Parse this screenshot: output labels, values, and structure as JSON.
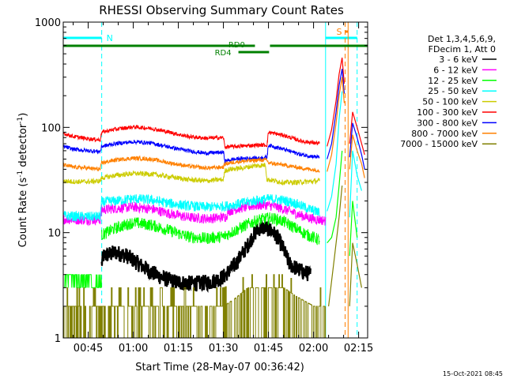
{
  "chart_data": {
    "type": "line",
    "title": "RHESSI Observing Summary Count Rates",
    "xlabel": "Start Time (28-May-07 00:36:42)",
    "ylabel": "Count Rate (s",
    "ylabel_sup": "-1",
    "ylabel_mid": " detector",
    "ylabel_close": ")",
    "yscale": "log",
    "ylim": [
      1,
      1000
    ],
    "xlim_minutes": [
      36.7,
      138
    ],
    "x_ticks": [
      {
        "label": "00:45",
        "minutes": 45
      },
      {
        "label": "01:00",
        "minutes": 60
      },
      {
        "label": "01:15",
        "minutes": 75
      },
      {
        "label": "01:30",
        "minutes": 90
      },
      {
        "label": "01:45",
        "minutes": 105
      },
      {
        "label": "02:00",
        "minutes": 120
      },
      {
        "label": "02:15",
        "minutes": 135
      }
    ],
    "y_ticks": [
      {
        "label": "1",
        "value": 1
      },
      {
        "label": "10",
        "value": 10
      },
      {
        "label": "100",
        "value": 100
      },
      {
        "label": "1000",
        "value": 1000
      }
    ],
    "legend": {
      "placement": "right",
      "header": [
        "Det 1,3,4,5,6,9,",
        "FDecim 1, Att 0"
      ],
      "entries": [
        {
          "label": "3 - 6 keV",
          "color": "#000000"
        },
        {
          "label": "6 - 12 keV",
          "color": "#ff00ff"
        },
        {
          "label": "12 - 25 keV",
          "color": "#00ff00"
        },
        {
          "label": "25 - 50 keV",
          "color": "#00ffff"
        },
        {
          "label": "50 - 100 keV",
          "color": "#cccc00"
        },
        {
          "label": "100 - 300 keV",
          "color": "#ff0000"
        },
        {
          "label": "300 - 800 keV",
          "color": "#0000ff"
        },
        {
          "label": "800 - 7000 keV",
          "color": "#ff8000"
        },
        {
          "label": "7000 - 15000 keV",
          "color": "#808000"
        }
      ]
    },
    "annotations": {
      "night": "N",
      "saa": "S",
      "rd0": "RD0",
      "rd4": "RD4",
      "timestamp": "15-Oct-2021 08:45"
    },
    "night_intervals": [
      [
        36.7,
        49.5
      ],
      [
        124,
        134.5
      ]
    ],
    "saa_intervals": [
      [
        130.5,
        131.5
      ]
    ],
    "rd0_intervals": [
      [
        36.7,
        100.5
      ],
      [
        105.5,
        138
      ]
    ],
    "rd4_intervals": [
      [
        95,
        105.2
      ]
    ],
    "series": [
      {
        "name": "3 - 6 keV",
        "color": "#000000",
        "noise": 0.08,
        "x": [
          49.5,
          50,
          54,
          58,
          62,
          66,
          70,
          74,
          78,
          82,
          86,
          90,
          94,
          98,
          100,
          102,
          104,
          106,
          108,
          110,
          112,
          116,
          119
        ],
        "y": [
          5,
          6,
          6.5,
          6,
          5,
          4.2,
          3.7,
          3.4,
          3.3,
          3.3,
          3.4,
          3.8,
          5,
          7.5,
          9.5,
          11,
          11.2,
          10.5,
          9,
          7,
          5,
          4.3,
          4
        ]
      },
      {
        "name": "6 - 12 keV",
        "color": "#ff00ff",
        "noise": 0.05,
        "x": [
          36.7,
          40,
          45,
          49,
          49.5,
          54,
          60,
          66,
          72,
          78,
          84,
          88,
          91,
          91.5,
          96,
          100,
          104,
          108,
          112,
          116,
          120,
          124
        ],
        "y": [
          13.5,
          13.3,
          13.2,
          13.3,
          16.5,
          17,
          17.5,
          16.8,
          15.2,
          14,
          13.6,
          13.8,
          14.2,
          16,
          17.2,
          18,
          18.4,
          17.5,
          16,
          14.5,
          13.5,
          13
        ]
      },
      {
        "name": "12 - 25 keV",
        "color": "#00ff00",
        "noise": 0.06,
        "x": [
          49.5,
          54,
          60,
          66,
          72,
          78,
          84,
          90,
          94,
          98,
          102,
          106,
          110,
          114,
          118,
          122
        ],
        "y": [
          9.5,
          11,
          12.5,
          11.8,
          10.5,
          9.2,
          8.8,
          9.2,
          10.5,
          12,
          13.3,
          13.8,
          12.8,
          11,
          9.5,
          8.5
        ]
      },
      {
        "name": "25 - 50 keV",
        "color": "#00ffff",
        "noise": 0.05,
        "x": [
          36.7,
          40,
          45,
          49,
          49.5,
          54,
          60,
          66,
          72,
          78,
          84,
          90,
          94,
          98,
          102,
          106,
          110,
          114,
          118,
          122
        ],
        "y": [
          14.5,
          14.3,
          14.2,
          14.2,
          19.5,
          20,
          21,
          20.5,
          19,
          18,
          17.5,
          17.8,
          18.5,
          19.5,
          20.5,
          21,
          20.3,
          19,
          17,
          15.5
        ]
      },
      {
        "name": "50 - 100 keV",
        "color": "#cccc00",
        "noise": 0.025,
        "x": [
          36.7,
          40,
          45,
          49,
          49.5,
          54,
          60,
          66,
          72,
          78,
          84,
          90,
          90.5,
          92,
          96,
          100,
          104,
          104.5,
          106,
          110,
          114,
          118,
          122
        ],
        "y": [
          31,
          30.5,
          30.5,
          31,
          33,
          35,
          36.5,
          36,
          34,
          32,
          31,
          32,
          39,
          40,
          41,
          43,
          44,
          32,
          31.5,
          30,
          30,
          30.5,
          31
        ]
      },
      {
        "name": "100 - 300 keV",
        "color": "#ff0000",
        "noise": 0.02,
        "x": [
          36.7,
          40,
          45,
          49,
          49.5,
          54,
          60,
          66,
          72,
          78,
          84,
          90,
          90.5,
          94,
          98,
          102,
          104.5,
          105,
          110,
          116,
          122
        ],
        "y": [
          88,
          82,
          78,
          76,
          90,
          96,
          101,
          98,
          90,
          82,
          79,
          80,
          65,
          66,
          67,
          68,
          68,
          90,
          84,
          74,
          70
        ]
      },
      {
        "name": "300 - 800 keV",
        "color": "#0000ff",
        "noise": 0.02,
        "x": [
          36.7,
          40,
          45,
          49,
          49.5,
          54,
          60,
          66,
          72,
          78,
          84,
          90,
          90.5,
          94,
          98,
          102,
          104.5,
          105,
          110,
          116,
          122
        ],
        "y": [
          66,
          62,
          60,
          59,
          66,
          70,
          73,
          71,
          65,
          60,
          57,
          58,
          48,
          50,
          51,
          51,
          52,
          68,
          62,
          55,
          52
        ]
      },
      {
        "name": "800 - 7000 keV",
        "color": "#ff8000",
        "noise": 0.02,
        "x": [
          36.7,
          40,
          45,
          49,
          49.5,
          54,
          60,
          66,
          72,
          78,
          84,
          90,
          90.5,
          94,
          98,
          102,
          104.5,
          105,
          110,
          116,
          122
        ],
        "y": [
          44,
          42,
          41,
          40,
          46,
          49,
          51,
          50,
          46,
          43,
          41,
          42,
          45,
          47,
          48,
          49,
          49,
          46,
          44,
          41,
          39
        ]
      },
      {
        "name": "7000 - 15000 keV",
        "color": "#808000",
        "noise": 0,
        "x": [
          36.7,
          49.5,
          55,
          60,
          66,
          72,
          78,
          84,
          90,
          94,
          98,
          102,
          106,
          110,
          114,
          120,
          124
        ],
        "y": [
          2,
          2,
          2,
          2,
          2,
          2,
          2,
          2,
          2,
          2.4,
          3,
          3,
          3,
          3,
          2.5,
          2,
          2
        ]
      }
    ],
    "flare_segments": [
      {
        "color": "#ff0000",
        "x": [
          124.5,
          126,
          127.5,
          128.5,
          129.5,
          130.2
        ],
        "y": [
          66,
          95,
          180,
          320,
          460,
          260
        ]
      },
      {
        "color": "#0000ff",
        "x": [
          124.5,
          126,
          127.5,
          128.5,
          129.5,
          130.2
        ],
        "y": [
          50,
          70,
          140,
          250,
          360,
          210
        ]
      },
      {
        "color": "#ff8000",
        "x": [
          124.5,
          126,
          127.5,
          128.5,
          129.5,
          130.2
        ],
        "y": [
          38,
          55,
          110,
          200,
          300,
          170
        ]
      },
      {
        "color": "#00ffff",
        "x": [
          124.5,
          126,
          127.5,
          128.5,
          129.5
        ],
        "y": [
          16,
          22,
          45,
          120,
          220
        ]
      },
      {
        "color": "#00ff00",
        "x": [
          124.5,
          126,
          127.5,
          128.5,
          129.5
        ],
        "y": [
          8,
          9,
          14,
          28,
          60
        ]
      },
      {
        "color": "#808000",
        "x": [
          125,
          127,
          128.5,
          129.5
        ],
        "y": [
          2,
          6,
          14,
          28
        ]
      },
      {
        "color": "#ff0000",
        "x": [
          132,
          133,
          134.5,
          136,
          137
        ],
        "y": [
          70,
          140,
          100,
          70,
          55
        ]
      },
      {
        "color": "#0000ff",
        "x": [
          132,
          133,
          134.5,
          136,
          137
        ],
        "y": [
          52,
          110,
          80,
          55,
          40
        ]
      },
      {
        "color": "#ff8000",
        "x": [
          132,
          133,
          134.5,
          136,
          137
        ],
        "y": [
          40,
          85,
          60,
          45,
          33
        ]
      },
      {
        "color": "#00ffff",
        "x": [
          132,
          133,
          134.5,
          136
        ],
        "y": [
          14,
          60,
          35,
          25
        ]
      },
      {
        "color": "#00ff00",
        "x": [
          132,
          133,
          134.5
        ],
        "y": [
          6,
          20,
          9
        ]
      },
      {
        "color": "#808000",
        "x": [
          132,
          133,
          134.5,
          136
        ],
        "y": [
          2,
          8,
          5,
          3
        ]
      }
    ]
  }
}
